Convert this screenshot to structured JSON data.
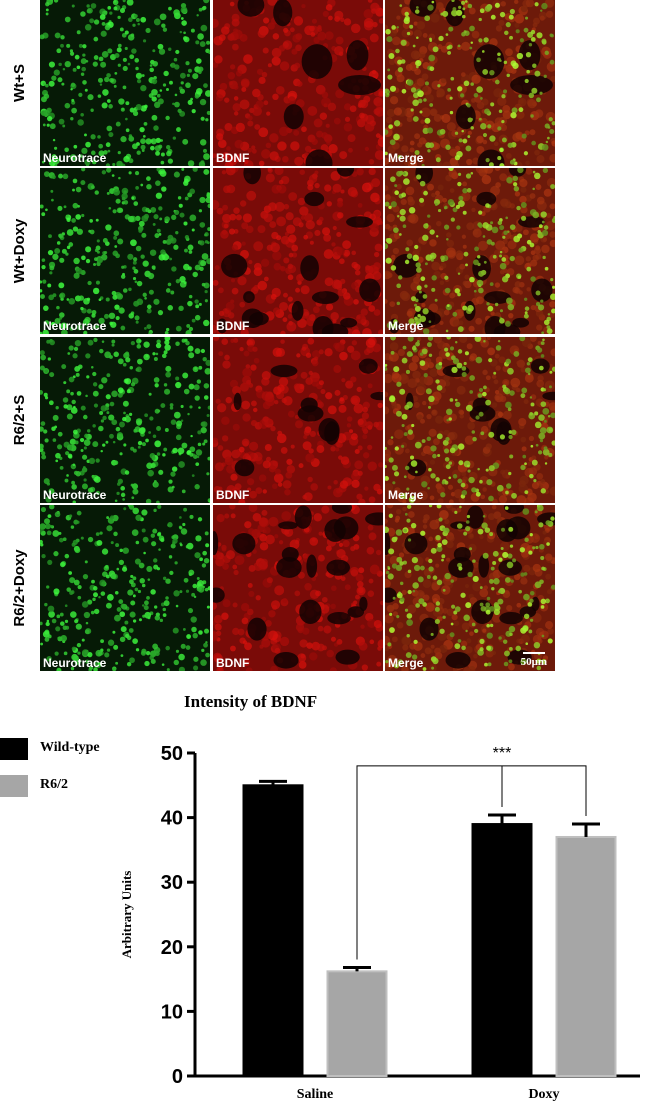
{
  "figure": {
    "rows": [
      {
        "label": "Wt+S",
        "texture": "wt-s"
      },
      {
        "label": "Wt+Doxy",
        "texture": "wt-doxy"
      },
      {
        "label": "R6/2+S",
        "texture": "r62-s"
      },
      {
        "label": "R6/2+Doxy",
        "texture": "r62-doxy"
      }
    ],
    "columns": [
      {
        "label": "Neurotrace",
        "channel": "green"
      },
      {
        "label": "BDNF",
        "channel": "red"
      },
      {
        "label": "Merge",
        "channel": "merge"
      }
    ],
    "scale_bar": "50μm",
    "colors": {
      "green": "#2fd33a",
      "red": "#c0140f",
      "merge_bg": "#8a1f0d"
    }
  },
  "chart_data": {
    "type": "bar",
    "title": "Intensity of BDNF",
    "xlabel": "",
    "ylabel": "Arbitrary Units",
    "categories": [
      "Saline",
      "Doxy"
    ],
    "series": [
      {
        "name": "Wild-type",
        "values": [
          45,
          39
        ],
        "errors": [
          0.6,
          1.4
        ],
        "color": "#000000"
      },
      {
        "name": "R6/2",
        "values": [
          16.2,
          37
        ],
        "errors": [
          0.6,
          2.0
        ],
        "color": "#a6a6a6"
      }
    ],
    "ylim": [
      0,
      50
    ],
    "yticks": [
      0,
      10,
      20,
      30,
      40,
      50
    ],
    "significance": "***",
    "legend_position": "top-left",
    "grid": false
  }
}
